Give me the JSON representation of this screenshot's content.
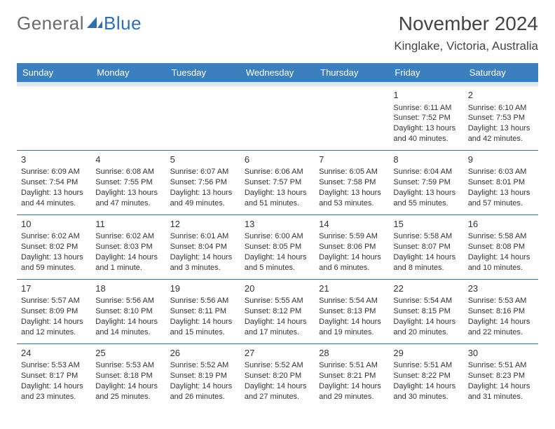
{
  "logo": {
    "text_general": "General",
    "text_blue": "Blue"
  },
  "header": {
    "month_title": "November 2024",
    "location": "Kinglake, Victoria, Australia"
  },
  "day_headers": [
    "Sunday",
    "Monday",
    "Tuesday",
    "Wednesday",
    "Thursday",
    "Friday",
    "Saturday"
  ],
  "colors": {
    "header_bg": "#3b7fbf",
    "header_text": "#ffffff",
    "subheader_band": "#dfe6ec",
    "row_divider": "#4a6a8a",
    "logo_gray": "#6b6b6b",
    "logo_blue": "#2f6fb0",
    "text": "#333333",
    "background": "#ffffff"
  },
  "weeks": [
    [
      null,
      null,
      null,
      null,
      null,
      {
        "n": "1",
        "sunrise": "Sunrise: 6:11 AM",
        "sunset": "Sunset: 7:52 PM",
        "daylight": "Daylight: 13 hours and 40 minutes."
      },
      {
        "n": "2",
        "sunrise": "Sunrise: 6:10 AM",
        "sunset": "Sunset: 7:53 PM",
        "daylight": "Daylight: 13 hours and 42 minutes."
      }
    ],
    [
      {
        "n": "3",
        "sunrise": "Sunrise: 6:09 AM",
        "sunset": "Sunset: 7:54 PM",
        "daylight": "Daylight: 13 hours and 44 minutes."
      },
      {
        "n": "4",
        "sunrise": "Sunrise: 6:08 AM",
        "sunset": "Sunset: 7:55 PM",
        "daylight": "Daylight: 13 hours and 47 minutes."
      },
      {
        "n": "5",
        "sunrise": "Sunrise: 6:07 AM",
        "sunset": "Sunset: 7:56 PM",
        "daylight": "Daylight: 13 hours and 49 minutes."
      },
      {
        "n": "6",
        "sunrise": "Sunrise: 6:06 AM",
        "sunset": "Sunset: 7:57 PM",
        "daylight": "Daylight: 13 hours and 51 minutes."
      },
      {
        "n": "7",
        "sunrise": "Sunrise: 6:05 AM",
        "sunset": "Sunset: 7:58 PM",
        "daylight": "Daylight: 13 hours and 53 minutes."
      },
      {
        "n": "8",
        "sunrise": "Sunrise: 6:04 AM",
        "sunset": "Sunset: 7:59 PM",
        "daylight": "Daylight: 13 hours and 55 minutes."
      },
      {
        "n": "9",
        "sunrise": "Sunrise: 6:03 AM",
        "sunset": "Sunset: 8:01 PM",
        "daylight": "Daylight: 13 hours and 57 minutes."
      }
    ],
    [
      {
        "n": "10",
        "sunrise": "Sunrise: 6:02 AM",
        "sunset": "Sunset: 8:02 PM",
        "daylight": "Daylight: 13 hours and 59 minutes."
      },
      {
        "n": "11",
        "sunrise": "Sunrise: 6:02 AM",
        "sunset": "Sunset: 8:03 PM",
        "daylight": "Daylight: 14 hours and 1 minute."
      },
      {
        "n": "12",
        "sunrise": "Sunrise: 6:01 AM",
        "sunset": "Sunset: 8:04 PM",
        "daylight": "Daylight: 14 hours and 3 minutes."
      },
      {
        "n": "13",
        "sunrise": "Sunrise: 6:00 AM",
        "sunset": "Sunset: 8:05 PM",
        "daylight": "Daylight: 14 hours and 5 minutes."
      },
      {
        "n": "14",
        "sunrise": "Sunrise: 5:59 AM",
        "sunset": "Sunset: 8:06 PM",
        "daylight": "Daylight: 14 hours and 6 minutes."
      },
      {
        "n": "15",
        "sunrise": "Sunrise: 5:58 AM",
        "sunset": "Sunset: 8:07 PM",
        "daylight": "Daylight: 14 hours and 8 minutes."
      },
      {
        "n": "16",
        "sunrise": "Sunrise: 5:58 AM",
        "sunset": "Sunset: 8:08 PM",
        "daylight": "Daylight: 14 hours and 10 minutes."
      }
    ],
    [
      {
        "n": "17",
        "sunrise": "Sunrise: 5:57 AM",
        "sunset": "Sunset: 8:09 PM",
        "daylight": "Daylight: 14 hours and 12 minutes."
      },
      {
        "n": "18",
        "sunrise": "Sunrise: 5:56 AM",
        "sunset": "Sunset: 8:10 PM",
        "daylight": "Daylight: 14 hours and 14 minutes."
      },
      {
        "n": "19",
        "sunrise": "Sunrise: 5:56 AM",
        "sunset": "Sunset: 8:11 PM",
        "daylight": "Daylight: 14 hours and 15 minutes."
      },
      {
        "n": "20",
        "sunrise": "Sunrise: 5:55 AM",
        "sunset": "Sunset: 8:12 PM",
        "daylight": "Daylight: 14 hours and 17 minutes."
      },
      {
        "n": "21",
        "sunrise": "Sunrise: 5:54 AM",
        "sunset": "Sunset: 8:13 PM",
        "daylight": "Daylight: 14 hours and 19 minutes."
      },
      {
        "n": "22",
        "sunrise": "Sunrise: 5:54 AM",
        "sunset": "Sunset: 8:15 PM",
        "daylight": "Daylight: 14 hours and 20 minutes."
      },
      {
        "n": "23",
        "sunrise": "Sunrise: 5:53 AM",
        "sunset": "Sunset: 8:16 PM",
        "daylight": "Daylight: 14 hours and 22 minutes."
      }
    ],
    [
      {
        "n": "24",
        "sunrise": "Sunrise: 5:53 AM",
        "sunset": "Sunset: 8:17 PM",
        "daylight": "Daylight: 14 hours and 23 minutes."
      },
      {
        "n": "25",
        "sunrise": "Sunrise: 5:53 AM",
        "sunset": "Sunset: 8:18 PM",
        "daylight": "Daylight: 14 hours and 25 minutes."
      },
      {
        "n": "26",
        "sunrise": "Sunrise: 5:52 AM",
        "sunset": "Sunset: 8:19 PM",
        "daylight": "Daylight: 14 hours and 26 minutes."
      },
      {
        "n": "27",
        "sunrise": "Sunrise: 5:52 AM",
        "sunset": "Sunset: 8:20 PM",
        "daylight": "Daylight: 14 hours and 27 minutes."
      },
      {
        "n": "28",
        "sunrise": "Sunrise: 5:51 AM",
        "sunset": "Sunset: 8:21 PM",
        "daylight": "Daylight: 14 hours and 29 minutes."
      },
      {
        "n": "29",
        "sunrise": "Sunrise: 5:51 AM",
        "sunset": "Sunset: 8:22 PM",
        "daylight": "Daylight: 14 hours and 30 minutes."
      },
      {
        "n": "30",
        "sunrise": "Sunrise: 5:51 AM",
        "sunset": "Sunset: 8:23 PM",
        "daylight": "Daylight: 14 hours and 31 minutes."
      }
    ]
  ]
}
